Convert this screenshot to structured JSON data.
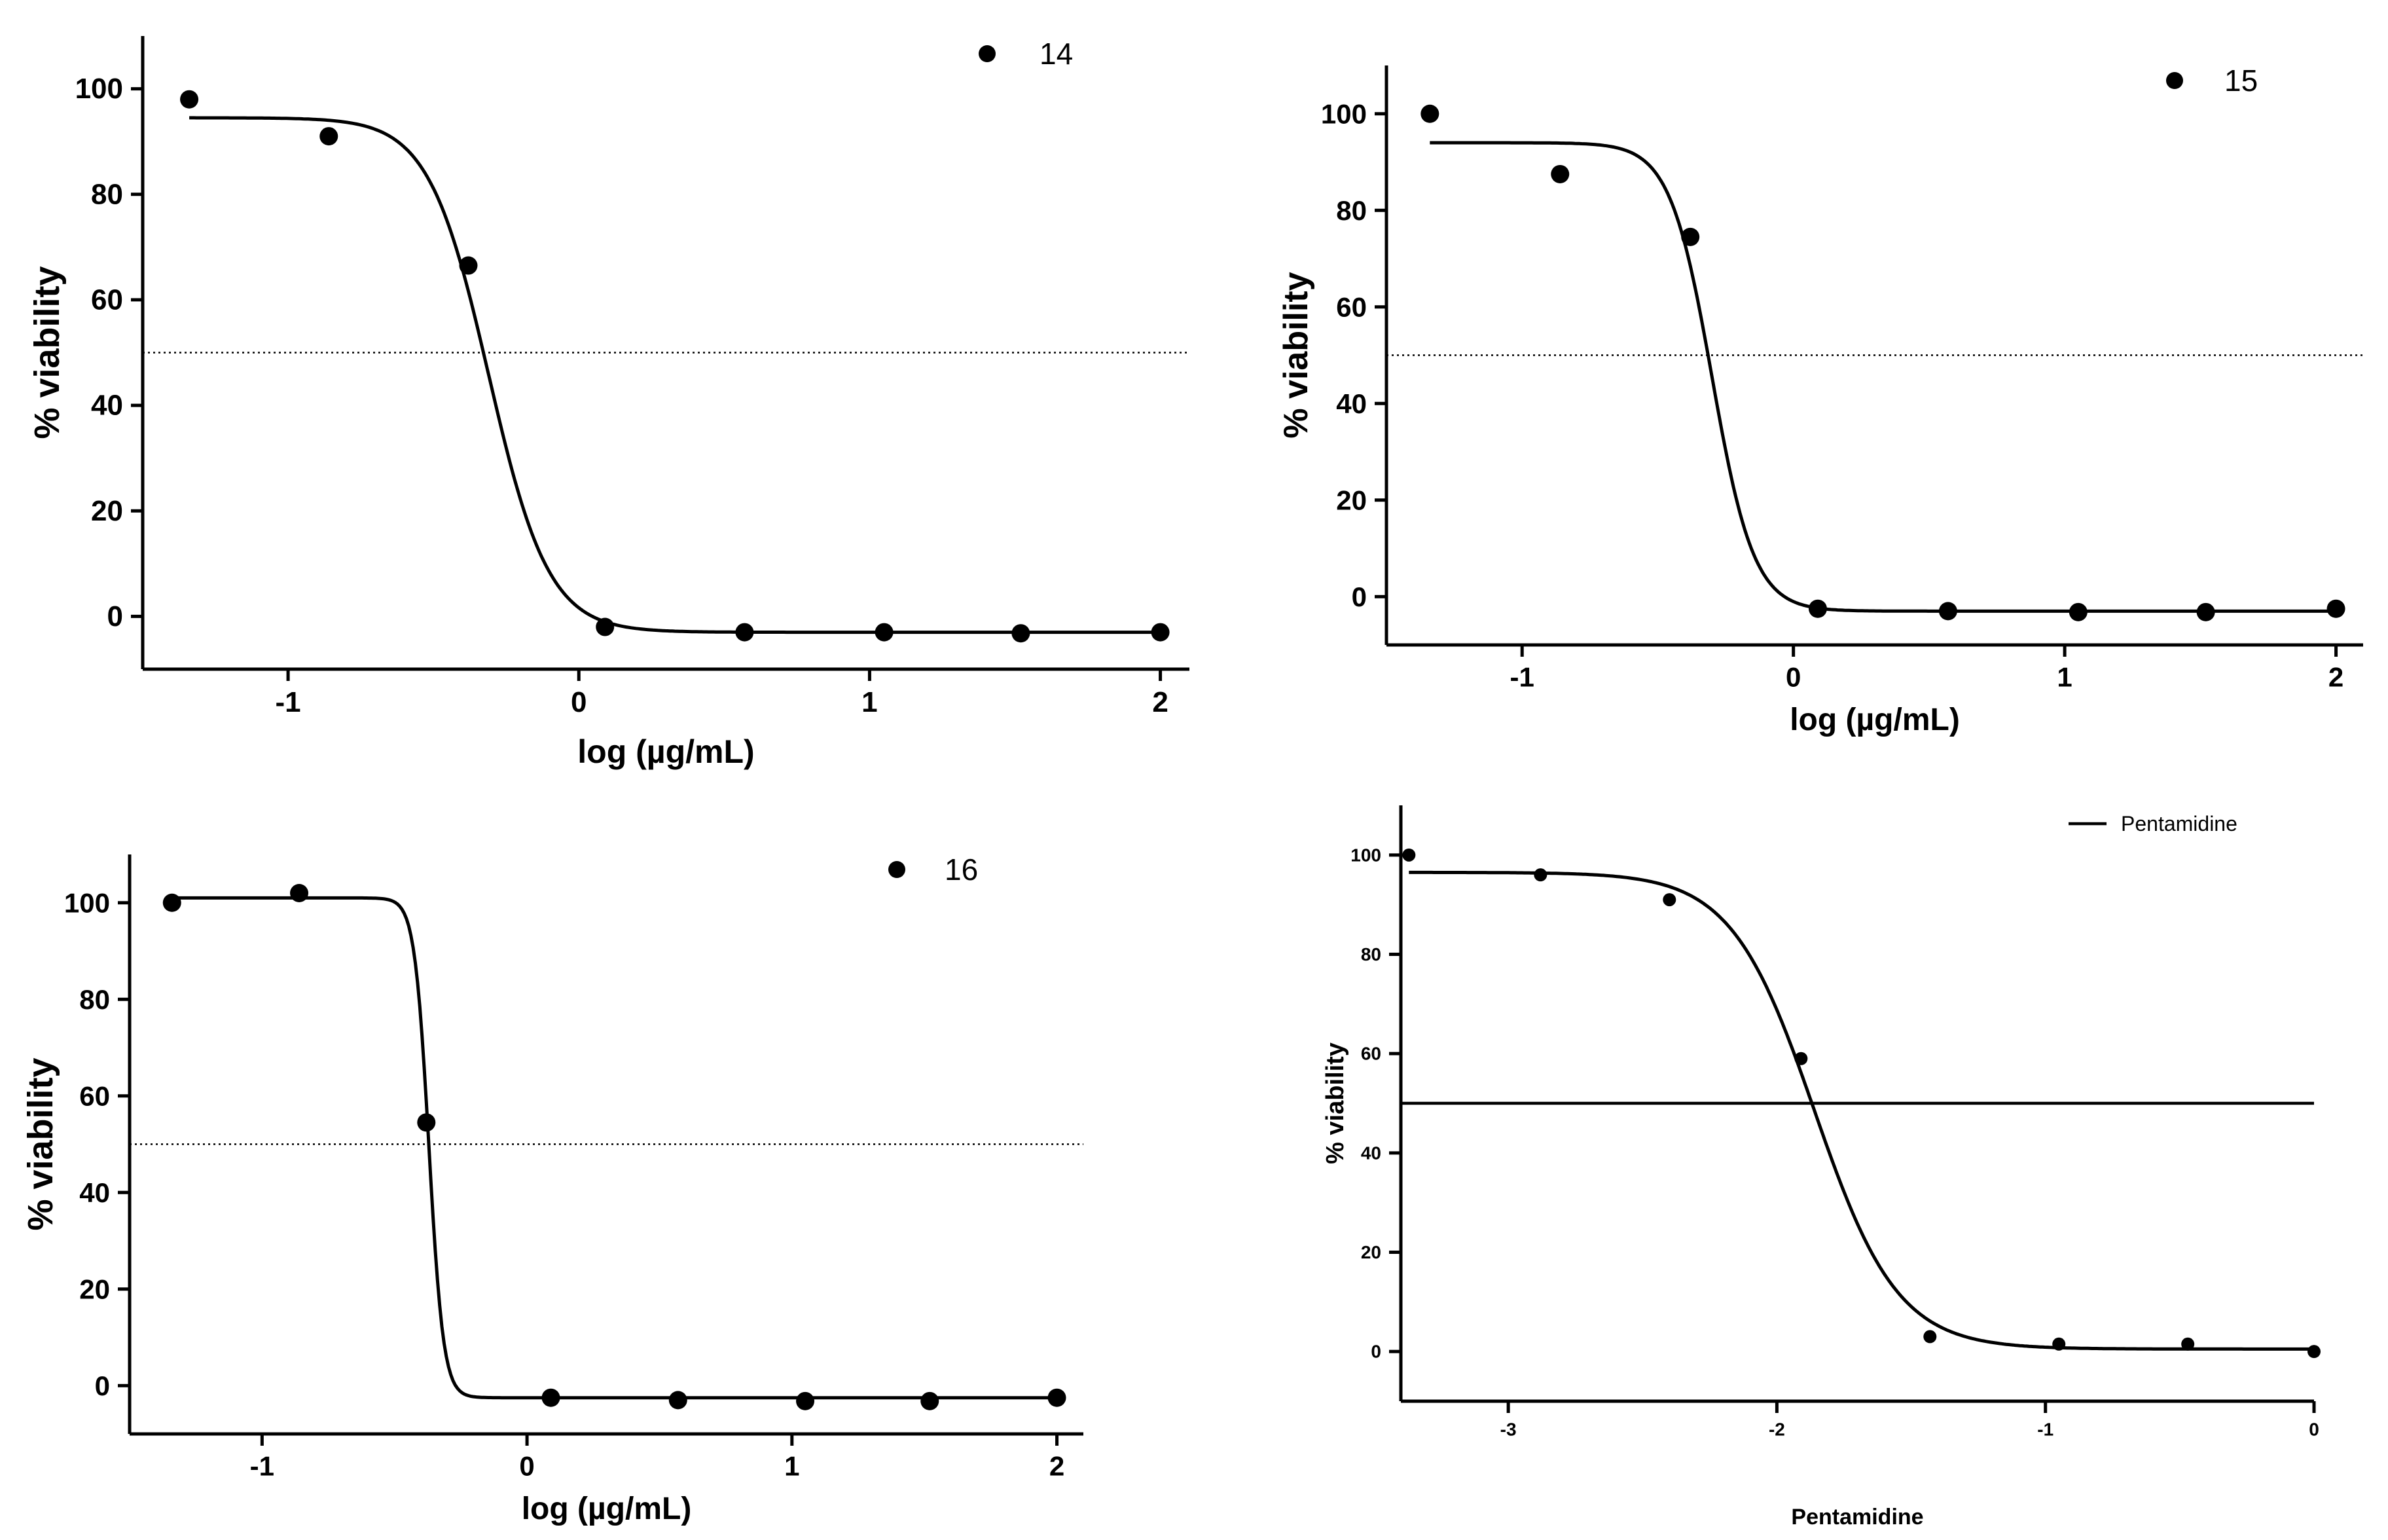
{
  "chart_data": [
    {
      "type": "scatter",
      "legend": "14",
      "xlabel": "log (µg/mL)",
      "ylabel": "% viability",
      "xlim": [
        -1.5,
        2.1
      ],
      "ylim": [
        -10,
        110
      ],
      "xticks": [
        -1,
        0,
        1,
        2
      ],
      "yticks": [
        0,
        20,
        40,
        60,
        80,
        100
      ],
      "points": {
        "x": [
          -1.34,
          -0.86,
          -0.38,
          0.09,
          0.57,
          1.05,
          1.52,
          2.0
        ],
        "y": [
          98,
          91,
          66.5,
          -2,
          -3,
          -3,
          -3.2,
          -3
        ]
      },
      "fit": {
        "top": 94.5,
        "bottom": -3,
        "log_ec50": -0.31,
        "hill": -4.2
      },
      "reference_line": {
        "y": 50,
        "style": "dotted"
      }
    },
    {
      "type": "scatter",
      "legend": "15",
      "xlabel": "log (µg/mL)",
      "ylabel": "% viability",
      "xlim": [
        -1.5,
        2.1
      ],
      "ylim": [
        -10,
        110
      ],
      "xticks": [
        -1,
        0,
        1,
        2
      ],
      "yticks": [
        0,
        20,
        40,
        60,
        80,
        100
      ],
      "points": {
        "x": [
          -1.34,
          -0.86,
          -0.38,
          0.09,
          0.57,
          1.05,
          1.52,
          2.0
        ],
        "y": [
          100,
          87.5,
          74.5,
          -2.5,
          -3,
          -3.2,
          -3.2,
          -2.5
        ]
      },
      "fit": {
        "top": 94,
        "bottom": -3,
        "log_ec50": -0.3,
        "hill": -5.6
      },
      "reference_line": {
        "y": 50,
        "style": "dotted"
      }
    },
    {
      "type": "scatter",
      "legend": "16",
      "xlabel": "log (µg/mL)",
      "ylabel": "% viability",
      "xlim": [
        -1.5,
        2.1
      ],
      "ylim": [
        -10,
        110
      ],
      "xticks": [
        -1,
        0,
        1,
        2
      ],
      "yticks": [
        0,
        20,
        40,
        60,
        80,
        100
      ],
      "points": {
        "x": [
          -1.34,
          -0.86,
          -0.38,
          0.09,
          0.57,
          1.05,
          1.52,
          2.0
        ],
        "y": [
          100,
          102,
          54.5,
          -2.5,
          -3,
          -3.2,
          -3.2,
          -2.5
        ]
      },
      "fit": {
        "top": 101,
        "bottom": -2.5,
        "log_ec50": -0.37,
        "hill": -16
      },
      "reference_line": {
        "y": 50,
        "style": "dotted"
      }
    },
    {
      "type": "scatter",
      "legend": "Pentamidine",
      "legend_marker": "line",
      "xlabel": "Pentamidine",
      "ylabel": "% viability",
      "xlim": [
        -3.4,
        0
      ],
      "ylim": [
        -10,
        110
      ],
      "xticks": [
        -3,
        -2,
        -1,
        0
      ],
      "yticks": [
        0,
        20,
        40,
        60,
        80,
        100
      ],
      "points": {
        "x": [
          -3.37,
          -2.88,
          -2.4,
          -1.91,
          -1.43,
          -0.95,
          -0.47,
          0.0
        ],
        "y": [
          100,
          96,
          91,
          59,
          3,
          1.5,
          1.5,
          0
        ]
      },
      "fit": {
        "top": 96.5,
        "bottom": 0.5,
        "log_ec50": -1.86,
        "hill": -2.8
      },
      "reference_line": {
        "y": 50,
        "style": "solid"
      }
    }
  ]
}
